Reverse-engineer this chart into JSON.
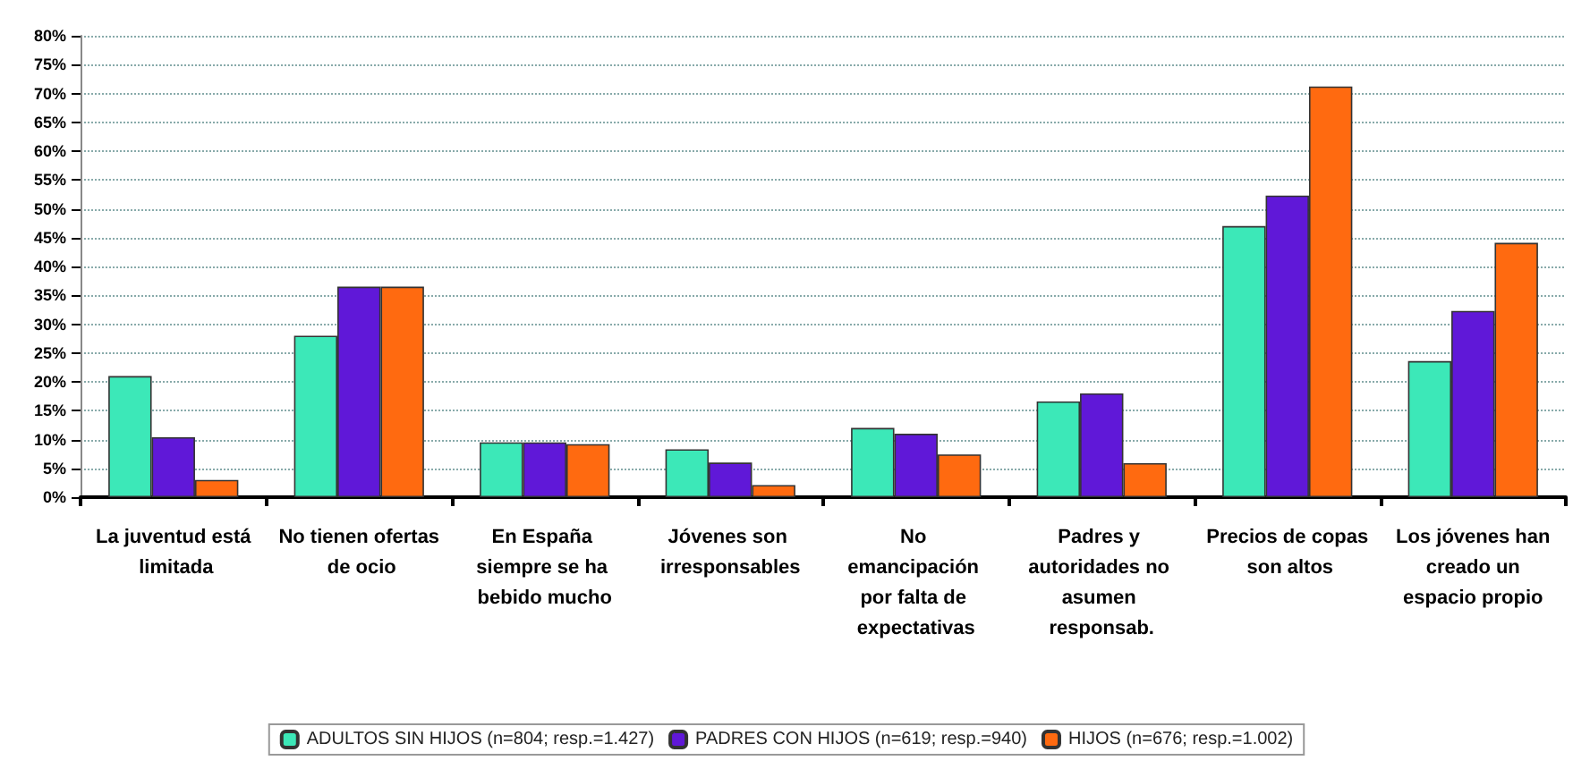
{
  "chart_data": {
    "type": "bar",
    "categories": [
      "La juventud está limitada",
      "No tienen ofertas de ocio",
      "En España siempre se ha bebido mucho",
      "Jóvenes son irresponsables",
      "No emancipación por falta de expectativas",
      "Padres y autoridades no asumen responsab.",
      "Precios de copas son altos",
      "Los jóvenes han creado un espacio propio"
    ],
    "series": [
      {
        "name": "ADULTOS SIN HIJOS (n=804; resp.=1.427)",
        "color": "#3ce8b8",
        "values": [
          21,
          28,
          9.5,
          8.3,
          12,
          16.6,
          47,
          23.6
        ]
      },
      {
        "name": "PADRES CON HIJOS (n=619; resp.=940)",
        "color": "#6018d8",
        "values": [
          10.4,
          36.5,
          9.5,
          6,
          11,
          18,
          52.3,
          32.3
        ]
      },
      {
        "name": "HIJOS (n=676; resp.=1.002)",
        "color": "#ff6a10",
        "values": [
          3,
          36.5,
          9.2,
          2.1,
          7.4,
          5.9,
          71.2,
          44.1
        ]
      }
    ],
    "ylim": [
      0,
      80
    ],
    "yticks": [
      {
        "value": 0,
        "label": "0%"
      },
      {
        "value": 5,
        "label": "5%"
      },
      {
        "value": 10,
        "label": "10%"
      },
      {
        "value": 15,
        "label": "15%"
      },
      {
        "value": 20,
        "label": "20%"
      },
      {
        "value": 25,
        "label": "25%"
      },
      {
        "value": 30,
        "label": "30%"
      },
      {
        "value": 35,
        "label": "35%"
      },
      {
        "value": 40,
        "label": "40%"
      },
      {
        "value": 45,
        "label": "45%"
      },
      {
        "value": 50,
        "label": "50%"
      },
      {
        "value": 55,
        "label": "55%"
      },
      {
        "value": 60,
        "label": "60%"
      },
      {
        "value": 65,
        "label": "65%"
      },
      {
        "value": 70,
        "label": "70%"
      },
      {
        "value": 75,
        "label": "75%"
      },
      {
        "value": 80,
        "label": "80%"
      }
    ],
    "grid": "y",
    "legend": "bottom"
  }
}
